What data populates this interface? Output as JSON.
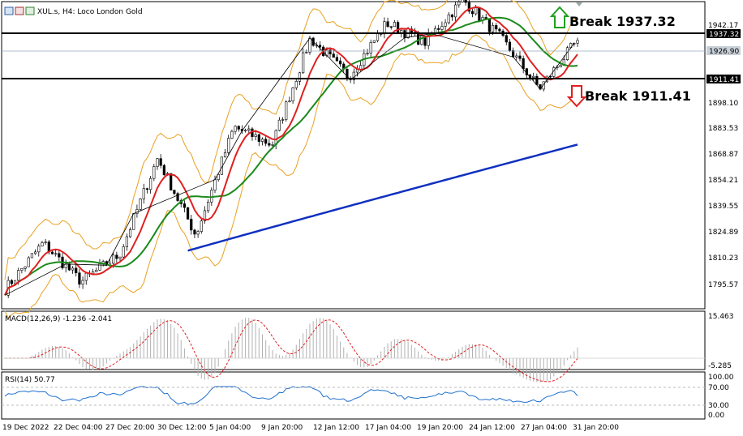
{
  "header": {
    "title": "XUL.s, H4:  Loco London Gold"
  },
  "annotations": {
    "break_up": "Break 1937.32",
    "break_down": "Break 1911.41"
  },
  "price_labels": {
    "upper_level": "1937.32",
    "current": "1926.90",
    "lower_level": "1911.41"
  },
  "price_axis": [
    "1942.17",
    "1927.00",
    "1898.10",
    "1883.53",
    "1868.87",
    "1854.21",
    "1839.55",
    "1824.89",
    "1810.23",
    "1795.57"
  ],
  "macd": {
    "label": "MACD(12,26,9) -1.236 -2.041",
    "axis": [
      "15.463",
      "-5.285"
    ]
  },
  "rsi": {
    "label": "RSI(14) 50.77",
    "axis": [
      "100.00",
      "70.00",
      "30.00",
      "0.00"
    ]
  },
  "time_axis": [
    "19 Dec 2022",
    "22 Dec 04:00",
    "27 Dec 20:00",
    "30 Dec 12:00",
    "5 Jan 04:00",
    "9 Jan 20:00",
    "12 Jan 12:00",
    "17 Jan 04:00",
    "19 Jan 20:00",
    "24 Jan 12:00",
    "27 Jan 04:00",
    "31 Jan 20:00"
  ],
  "colors": {
    "ma_fast": "#e02020",
    "ma_mid": "#1a8a1a",
    "ma_slow": "#1030c0",
    "bands": "#e8a020",
    "macd_hist": "#b0b0b0",
    "macd_signal": "#e02020",
    "rsi_line": "#2070d0",
    "up_arrow": "#20a020",
    "down_arrow": "#e02020"
  },
  "chart_data": {
    "type": "candlestick",
    "symbol": "XUL.s",
    "timeframe": "H4",
    "ylim": [
      1788,
      1947
    ],
    "levels": [
      1937.32,
      1911.41
    ],
    "current_price": 1926.9,
    "key_closes": [
      1798,
      1822,
      1802,
      1816,
      1866,
      1826,
      1882,
      1873,
      1928,
      1908,
      1936,
      1926,
      1948,
      1928,
      1902,
      1926.9
    ],
    "ma_slow_range": [
      1790,
      1873
    ],
    "rsi_last": 50.77,
    "macd_last": -1.236,
    "macd_signal_last": -2.041
  }
}
